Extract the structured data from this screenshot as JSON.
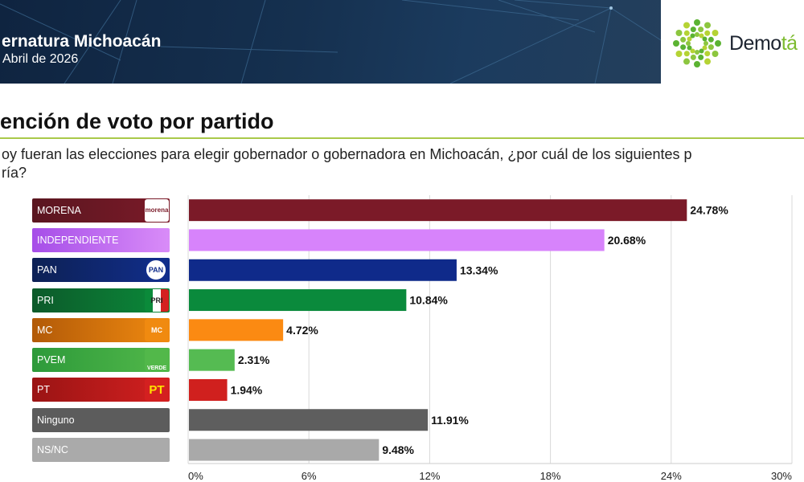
{
  "header": {
    "title": "ernatura Michoacán",
    "subtitle": "Abril de 2026",
    "logo_text_main": "Demo",
    "logo_text_accent": "tá"
  },
  "section": {
    "title": "ención de voto por partido",
    "question_line1": "oy fueran las elecciones para elegir gobernador o gobernadora en Michoacán, ¿por cuál de los siguientes p",
    "question_line2": "ría?"
  },
  "parties": [
    {
      "label": "MORENA",
      "badge": "morena",
      "icon": "morena-logo-icon",
      "colors": [
        "#5a1620",
        "#7b1a28"
      ],
      "bar_color": "#7b1a28"
    },
    {
      "label": "INDEPENDIENTE",
      "badge": "",
      "icon": "",
      "colors": [
        "#a64ee8",
        "#d98cf8"
      ],
      "bar_color": "#d783fb"
    },
    {
      "label": "PAN",
      "badge": "PAN",
      "icon": "pan-logo-icon",
      "colors": [
        "#0d2155",
        "#112e8c"
      ],
      "bar_color": "#0f2a8a"
    },
    {
      "label": "PRI",
      "badge": "PRI",
      "icon": "pri-logo-icon",
      "colors": [
        "#0c5a2a",
        "#0b8a3a"
      ],
      "bar_color": "#0a8a3c"
    },
    {
      "label": "MC",
      "badge": "MC",
      "icon": "mc-logo-icon",
      "colors": [
        "#b25a08",
        "#f08a10"
      ],
      "bar_color": "#fb8a12"
    },
    {
      "label": "PVEM",
      "badge": "VERDE",
      "icon": "pvem-logo-icon",
      "colors": [
        "#2d9a3a",
        "#52b84a"
      ],
      "bar_color": "#55bb52"
    },
    {
      "label": "PT",
      "badge": "PT",
      "icon": "pt-logo-icon",
      "colors": [
        "#9a1414",
        "#d42020"
      ],
      "bar_color": "#d0201e"
    },
    {
      "label": "Ninguno",
      "badge": "",
      "icon": "",
      "colors": [
        "#5c5c5c",
        "#5c5c5c"
      ],
      "bar_color": "#5e5e5e"
    },
    {
      "label": "NS/NC",
      "badge": "",
      "icon": "",
      "colors": [
        "#aaaaaa",
        "#aaaaaa"
      ],
      "bar_color": "#a9a9a9"
    }
  ],
  "chart_data": {
    "type": "bar",
    "orientation": "horizontal",
    "title": "ención de voto por partido",
    "categories": [
      "MORENA",
      "INDEPENDIENTE",
      "PAN",
      "PRI",
      "MC",
      "PVEM",
      "PT",
      "Ninguno",
      "NS/NC"
    ],
    "values": [
      24.78,
      20.68,
      13.34,
      10.84,
      4.72,
      2.31,
      1.94,
      11.91,
      9.48
    ],
    "value_labels": [
      "24.78%",
      "20.68%",
      "13.34%",
      "10.84%",
      "4.72%",
      "2.31%",
      "1.94%",
      "11.91%",
      "9.48%"
    ],
    "xlim": [
      0,
      30
    ],
    "xticks": [
      0,
      6,
      12,
      18,
      24,
      30
    ],
    "xtick_labels": [
      "0%",
      "6%",
      "12%",
      "18%",
      "24%",
      "30%"
    ],
    "xlabel": "",
    "ylabel": "",
    "grid": true,
    "legend": "none"
  }
}
